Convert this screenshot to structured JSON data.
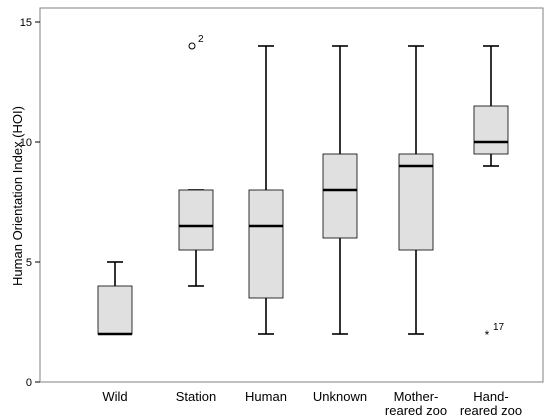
{
  "chart_data": {
    "type": "boxplot",
    "ylabel": "Human Orientation Index (HOI)",
    "xlabel": "",
    "ylim": [
      0,
      15
    ],
    "yticks": [
      "0",
      "5",
      "10",
      "15"
    ],
    "grid": false,
    "legend": "none",
    "colors": {
      "box_fill": "#e0e0e0",
      "stroke": "#000000",
      "frame": "#808080"
    },
    "categories": [
      [
        "Wild"
      ],
      [
        "Station"
      ],
      [
        "Human"
      ],
      [
        "Unknown"
      ],
      [
        "Mother-",
        "reared zoo"
      ],
      [
        "Hand-",
        "reared zoo"
      ]
    ],
    "boxes": [
      {
        "whisker_low": 2,
        "q1": 2,
        "median": 2,
        "q3": 4,
        "whisker_high": 5,
        "outliers": []
      },
      {
        "whisker_low": 4,
        "q1": 5.5,
        "median": 6.5,
        "q3": 8,
        "whisker_high": 8,
        "outliers": [
          {
            "value": 14,
            "label": "2",
            "marker": "circle"
          }
        ]
      },
      {
        "whisker_low": 2,
        "q1": 3.5,
        "median": 6.5,
        "q3": 8,
        "whisker_high": 14,
        "outliers": []
      },
      {
        "whisker_low": 2,
        "q1": 6,
        "median": 8,
        "q3": 9.5,
        "whisker_high": 14,
        "outliers": []
      },
      {
        "whisker_low": 2,
        "q1": 5.5,
        "median": 9,
        "q3": 9.5,
        "whisker_high": 14,
        "outliers": []
      },
      {
        "whisker_low": 9,
        "q1": 9.5,
        "median": 10,
        "q3": 11.5,
        "whisker_high": 14,
        "outliers": [
          {
            "value": 2,
            "label": "17",
            "marker": "star"
          }
        ]
      }
    ]
  }
}
